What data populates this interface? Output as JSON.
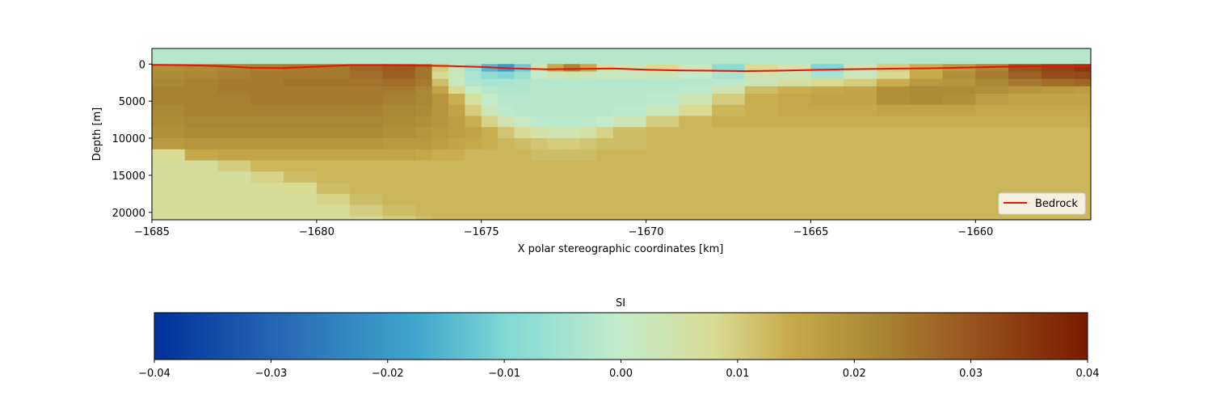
{
  "chart_data": [
    {
      "type": "heatmap",
      "title": "",
      "xlabel": "X polar stereographic coordinates [km]",
      "ylabel": "Depth [m]",
      "xlim": [
        -1685,
        -1656.5
      ],
      "ylim": [
        21000,
        -2100
      ],
      "y_inverted": true,
      "xticks": [
        -1685,
        -1680,
        -1675,
        -1670,
        -1665,
        -1660
      ],
      "xtick_labels": [
        "−1685",
        "−1680",
        "−1675",
        "−1670",
        "−1665",
        "−1660"
      ],
      "yticks": [
        0,
        5000,
        10000,
        15000,
        20000
      ],
      "ytick_labels": [
        "0",
        "5000",
        "10000",
        "15000",
        "20000"
      ],
      "legend": {
        "position": "lower-right",
        "entries": [
          {
            "label": "Bedrock",
            "color": "#e8140c"
          }
        ]
      },
      "colormap_ref": "colorbar",
      "above_bedrock_value": -0.002,
      "depth_rows": [
        0,
        1000,
        2000,
        3000,
        4000,
        5500,
        7000,
        8500,
        10000,
        11500,
        13000,
        14500,
        16000,
        17500,
        19000,
        20500
      ],
      "x_columns": [
        -1685,
        -1684,
        -1683,
        -1682,
        -1681,
        -1680,
        -1679,
        -1678,
        -1677,
        -1676.5,
        -1676,
        -1675.5,
        -1675,
        -1674.5,
        -1674,
        -1673.5,
        -1673,
        -1672.5,
        -1672,
        -1671.5,
        -1671,
        -1670,
        -1669,
        -1668,
        -1667,
        -1666,
        -1665,
        -1664,
        -1663,
        -1662,
        -1661,
        -1660,
        -1659,
        -1658,
        -1657
      ],
      "si_values": [
        [
          0.02,
          0.021,
          0.022,
          0.023,
          0.024,
          0.024,
          0.027,
          0.029,
          0.025,
          0.01,
          0.003,
          -0.006,
          -0.015,
          -0.02,
          -0.012,
          0.004,
          0.015,
          0.022,
          0.015,
          0.006,
          0.003,
          0.008,
          0.002,
          -0.008,
          0.008,
          0.004,
          -0.01,
          0.003,
          0.01,
          0.014,
          0.018,
          0.022,
          0.03,
          0.033,
          0.035
        ],
        [
          0.021,
          0.022,
          0.023,
          0.024,
          0.024,
          0.024,
          0.026,
          0.028,
          0.025,
          0.008,
          0.002,
          -0.004,
          -0.008,
          -0.01,
          -0.006,
          0.0,
          0.003,
          0.004,
          0.003,
          0.002,
          0.002,
          0.003,
          0.0,
          -0.004,
          0.004,
          0.003,
          -0.004,
          0.002,
          0.008,
          0.015,
          0.02,
          0.024,
          0.028,
          0.031,
          0.032
        ],
        [
          0.022,
          0.023,
          0.024,
          0.024,
          0.025,
          0.025,
          0.025,
          0.026,
          0.024,
          0.012,
          0.002,
          -0.003,
          -0.004,
          -0.004,
          -0.003,
          -0.002,
          -0.002,
          -0.002,
          -0.002,
          -0.002,
          -0.002,
          -0.002,
          -0.002,
          -0.001,
          0.003,
          0.006,
          0.008,
          0.01,
          0.014,
          0.018,
          0.019,
          0.022,
          0.024,
          0.026,
          0.027
        ],
        [
          0.023,
          0.023,
          0.024,
          0.024,
          0.024,
          0.024,
          0.024,
          0.024,
          0.022,
          0.016,
          0.008,
          0.0,
          -0.002,
          -0.003,
          -0.003,
          -0.002,
          -0.002,
          -0.002,
          -0.002,
          -0.002,
          -0.002,
          -0.002,
          -0.001,
          0.004,
          0.012,
          0.014,
          0.015,
          0.016,
          0.02,
          0.021,
          0.021,
          0.02,
          0.019,
          0.018,
          0.017
        ],
        [
          0.023,
          0.023,
          0.023,
          0.024,
          0.024,
          0.024,
          0.024,
          0.023,
          0.022,
          0.019,
          0.014,
          0.006,
          0.0,
          -0.002,
          -0.002,
          -0.002,
          -0.002,
          -0.002,
          -0.002,
          -0.002,
          -0.002,
          -0.001,
          0.003,
          0.01,
          0.014,
          0.015,
          0.016,
          0.016,
          0.02,
          0.021,
          0.02,
          0.017,
          0.016,
          0.016,
          0.016
        ],
        [
          0.022,
          0.023,
          0.023,
          0.023,
          0.023,
          0.023,
          0.023,
          0.022,
          0.021,
          0.019,
          0.016,
          0.01,
          0.003,
          -0.001,
          -0.002,
          -0.002,
          -0.002,
          -0.002,
          -0.002,
          -0.002,
          -0.001,
          0.002,
          0.008,
          0.013,
          0.014,
          0.015,
          0.015,
          0.015,
          0.016,
          0.016,
          0.016,
          0.015,
          0.015,
          0.015,
          0.015
        ],
        [
          0.021,
          0.022,
          0.022,
          0.022,
          0.022,
          0.022,
          0.022,
          0.021,
          0.02,
          0.019,
          0.017,
          0.014,
          0.009,
          0.004,
          0.001,
          -0.001,
          -0.001,
          -0.001,
          -0.001,
          0.0,
          0.003,
          0.01,
          0.013,
          0.014,
          0.014,
          0.014,
          0.014,
          0.014,
          0.014,
          0.014,
          0.014,
          0.014,
          0.014,
          0.014,
          0.014
        ],
        [
          0.02,
          0.021,
          0.021,
          0.021,
          0.021,
          0.021,
          0.021,
          0.02,
          0.019,
          0.018,
          0.017,
          0.016,
          0.014,
          0.011,
          0.008,
          0.005,
          0.004,
          0.004,
          0.006,
          0.009,
          0.012,
          0.013,
          0.013,
          0.013,
          0.013,
          0.013,
          0.013,
          0.013,
          0.013,
          0.013,
          0.013,
          0.013,
          0.013,
          0.013,
          0.013
        ],
        [
          0.018,
          0.019,
          0.019,
          0.019,
          0.019,
          0.019,
          0.019,
          0.018,
          0.018,
          0.017,
          0.016,
          0.015,
          0.014,
          0.013,
          0.012,
          0.011,
          0.01,
          0.01,
          0.011,
          0.012,
          0.012,
          0.013,
          0.013,
          0.013,
          0.013,
          0.013,
          0.013,
          0.013,
          0.013,
          0.013,
          0.013,
          0.013,
          0.013,
          0.013,
          0.013
        ],
        [
          0.008,
          0.015,
          0.016,
          0.016,
          0.016,
          0.016,
          0.016,
          0.016,
          0.015,
          0.014,
          0.014,
          0.013,
          0.013,
          0.013,
          0.013,
          0.012,
          0.012,
          0.012,
          0.012,
          0.013,
          0.013,
          0.013,
          0.013,
          0.013,
          0.013,
          0.013,
          0.013,
          0.013,
          0.013,
          0.013,
          0.013,
          0.013,
          0.013,
          0.013,
          0.013
        ],
        [
          0.007,
          0.007,
          0.01,
          0.013,
          0.013,
          0.013,
          0.013,
          0.013,
          0.013,
          0.013,
          0.013,
          0.013,
          0.013,
          0.013,
          0.013,
          0.013,
          0.013,
          0.013,
          0.013,
          0.013,
          0.013,
          0.013,
          0.013,
          0.013,
          0.013,
          0.013,
          0.013,
          0.013,
          0.013,
          0.013,
          0.013,
          0.013,
          0.013,
          0.013,
          0.013
        ],
        [
          0.007,
          0.007,
          0.007,
          0.009,
          0.012,
          0.013,
          0.013,
          0.013,
          0.013,
          0.013,
          0.013,
          0.013,
          0.013,
          0.013,
          0.013,
          0.013,
          0.013,
          0.013,
          0.013,
          0.013,
          0.013,
          0.013,
          0.013,
          0.013,
          0.013,
          0.013,
          0.013,
          0.013,
          0.013,
          0.013,
          0.013,
          0.013,
          0.013,
          0.013,
          0.013
        ],
        [
          0.007,
          0.007,
          0.007,
          0.007,
          0.008,
          0.012,
          0.013,
          0.013,
          0.013,
          0.013,
          0.013,
          0.013,
          0.013,
          0.013,
          0.013,
          0.013,
          0.013,
          0.013,
          0.013,
          0.013,
          0.013,
          0.013,
          0.013,
          0.013,
          0.013,
          0.013,
          0.013,
          0.013,
          0.013,
          0.013,
          0.013,
          0.013,
          0.013,
          0.013,
          0.013
        ],
        [
          0.007,
          0.007,
          0.007,
          0.007,
          0.007,
          0.009,
          0.012,
          0.013,
          0.013,
          0.013,
          0.013,
          0.013,
          0.013,
          0.013,
          0.013,
          0.013,
          0.013,
          0.013,
          0.013,
          0.013,
          0.013,
          0.013,
          0.013,
          0.013,
          0.013,
          0.013,
          0.013,
          0.013,
          0.013,
          0.013,
          0.013,
          0.013,
          0.013,
          0.013,
          0.013
        ],
        [
          0.007,
          0.007,
          0.007,
          0.007,
          0.007,
          0.007,
          0.01,
          0.012,
          0.013,
          0.013,
          0.013,
          0.013,
          0.013,
          0.013,
          0.013,
          0.013,
          0.013,
          0.013,
          0.013,
          0.013,
          0.013,
          0.013,
          0.013,
          0.013,
          0.013,
          0.013,
          0.013,
          0.013,
          0.013,
          0.013,
          0.013,
          0.013,
          0.013,
          0.013,
          0.013
        ],
        [
          0.007,
          0.007,
          0.007,
          0.007,
          0.007,
          0.007,
          0.007,
          0.01,
          0.012,
          0.013,
          0.013,
          0.013,
          0.013,
          0.013,
          0.013,
          0.013,
          0.013,
          0.013,
          0.013,
          0.013,
          0.013,
          0.013,
          0.013,
          0.013,
          0.013,
          0.013,
          0.013,
          0.013,
          0.013,
          0.013,
          0.013,
          0.013,
          0.013,
          0.013,
          0.013
        ]
      ],
      "series": [
        {
          "name": "Bedrock",
          "color": "#e8140c",
          "x": [
            -1685,
            -1684,
            -1683,
            -1682,
            -1681,
            -1680,
            -1679,
            -1678,
            -1677,
            -1676,
            -1675,
            -1674,
            -1673,
            -1672,
            -1671,
            -1670,
            -1669,
            -1668,
            -1667,
            -1666,
            -1665,
            -1664,
            -1663,
            -1662,
            -1661,
            -1660,
            -1659,
            -1658,
            -1657,
            -1656.5
          ],
          "y": [
            100,
            150,
            250,
            500,
            550,
            350,
            150,
            150,
            200,
            250,
            400,
            600,
            700,
            650,
            600,
            750,
            850,
            900,
            950,
            900,
            800,
            700,
            650,
            600,
            550,
            450,
            350,
            300,
            300,
            300
          ]
        }
      ]
    },
    {
      "type": "colorbar",
      "title": "SI",
      "vmin": -0.04,
      "vmax": 0.04,
      "ticks": [
        -0.04,
        -0.03,
        -0.02,
        -0.01,
        0.0,
        0.01,
        0.02,
        0.03,
        0.04
      ],
      "tick_labels": [
        "−0.04",
        "−0.03",
        "−0.02",
        "−0.01",
        "0.00",
        "0.01",
        "0.02",
        "0.03",
        "0.04"
      ],
      "colormap": [
        [
          0.0,
          "#00309b"
        ],
        [
          0.15,
          "#2a6fb8"
        ],
        [
          0.28,
          "#3ea6cc"
        ],
        [
          0.38,
          "#83dad5"
        ],
        [
          0.5,
          "#c3ebca"
        ],
        [
          0.6,
          "#d9db94"
        ],
        [
          0.68,
          "#c8ab4c"
        ],
        [
          0.78,
          "#a98433"
        ],
        [
          0.88,
          "#98521d"
        ],
        [
          1.0,
          "#7a1a00"
        ]
      ]
    }
  ]
}
